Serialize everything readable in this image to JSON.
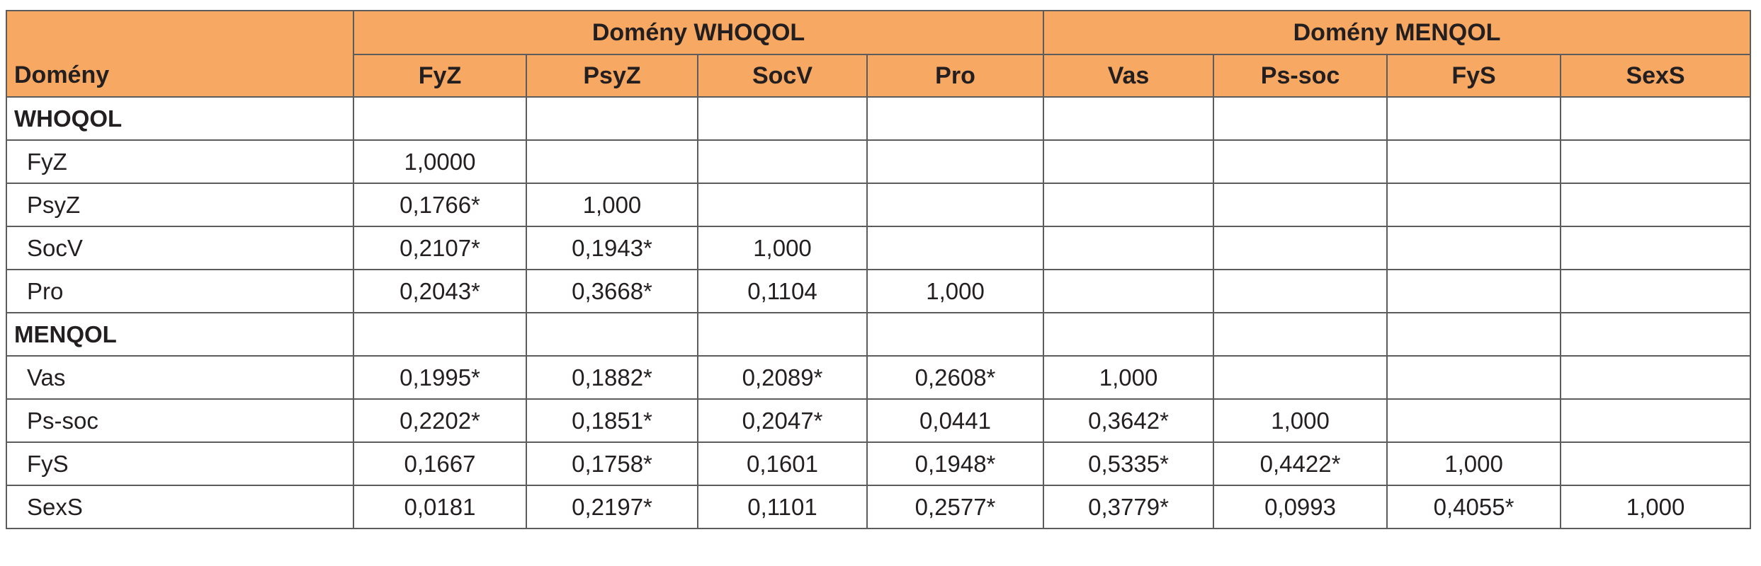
{
  "table": {
    "corner_label": "Domény",
    "groups": [
      {
        "label": "Domény WHOQOL"
      },
      {
        "label": "Domény MENQOL"
      }
    ],
    "columns": [
      "FyZ",
      "PsyZ",
      "SocV",
      "Pro",
      "Vas",
      "Ps-soc",
      "FyS",
      "SexS"
    ],
    "sections": [
      {
        "label": "WHOQOL",
        "rows": [
          {
            "label": "FyZ",
            "cells": [
              "1,0000",
              "",
              "",
              "",
              "",
              "",
              "",
              ""
            ]
          },
          {
            "label": "PsyZ",
            "cells": [
              "0,1766*",
              "1,000",
              "",
              "",
              "",
              "",
              "",
              ""
            ]
          },
          {
            "label": "SocV",
            "cells": [
              "0,2107*",
              "0,1943*",
              "1,000",
              "",
              "",
              "",
              "",
              ""
            ]
          },
          {
            "label": "Pro",
            "cells": [
              "0,2043*",
              "0,3668*",
              "0,1104",
              "1,000",
              "",
              "",
              "",
              ""
            ]
          }
        ]
      },
      {
        "label": "MENQOL",
        "rows": [
          {
            "label": "Vas",
            "cells": [
              "0,1995*",
              "0,1882*",
              "0,2089*",
              "0,2608*",
              "1,000",
              "",
              "",
              ""
            ]
          },
          {
            "label": "Ps-soc",
            "cells": [
              "0,2202*",
              "0,1851*",
              "0,2047*",
              "0,0441",
              "0,3642*",
              "1,000",
              "",
              ""
            ]
          },
          {
            "label": "FyS",
            "cells": [
              "0,1667",
              "0,1758*",
              "0,1601",
              "0,1948*",
              "0,5335*",
              "0,4422*",
              "1,000",
              ""
            ]
          },
          {
            "label": "SexS",
            "cells": [
              "0,0181",
              "0,2197*",
              "0,1101",
              "0,2577*",
              "0,3779*",
              "0,0993",
              "0,4055*",
              "1,000"
            ]
          }
        ]
      }
    ]
  },
  "colors": {
    "header_background": "#f7a862",
    "border": "#5c5c5c",
    "text": "#231f20"
  }
}
